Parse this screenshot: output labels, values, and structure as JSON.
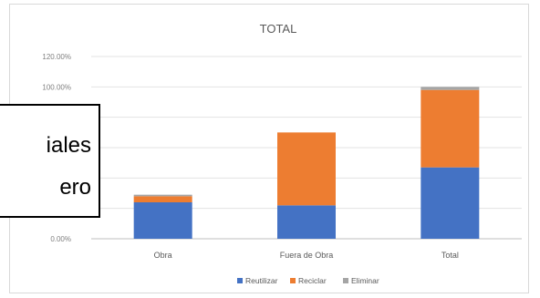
{
  "chart_data": {
    "type": "bar",
    "stacked": true,
    "title": "TOTAL",
    "categories": [
      "Obra",
      "Fuera de Obra",
      "Total"
    ],
    "series": [
      {
        "name": "Reutilizar",
        "color": "#4472c4",
        "values": [
          0.24,
          0.22,
          0.47
        ]
      },
      {
        "name": "Reciclar",
        "color": "#ed7d31",
        "values": [
          0.04,
          0.48,
          0.51
        ]
      },
      {
        "name": "Eliminar",
        "color": "#a5a5a5",
        "values": [
          0.01,
          0.0,
          0.02
        ]
      }
    ],
    "yticks": [
      "0.00%",
      "",
      "",
      "",
      "",
      "100.00%",
      "120.00%"
    ],
    "ylim": [
      0,
      1.2
    ],
    "grid": true,
    "legend": "bottom"
  },
  "overlay": {
    "line1": "iales",
    "line2": "ero"
  }
}
